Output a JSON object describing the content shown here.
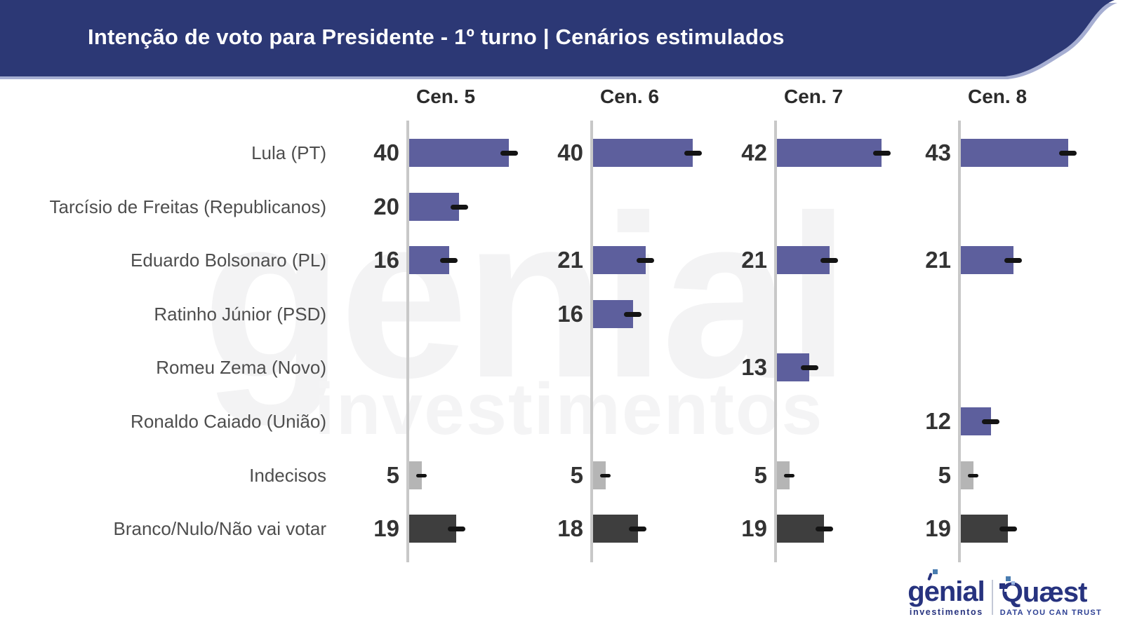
{
  "header": {
    "title": "Intenção de voto para Presidente - 1º turno | Cenários estimulados",
    "background_color": "#2c3875",
    "edge_color": "#a6aed2",
    "text_color": "#ffffff"
  },
  "watermark": {
    "line1": "genial",
    "line2": "investimentos"
  },
  "chart_data": {
    "type": "bar",
    "orientation": "horizontal",
    "unit": "percent",
    "scenarios": [
      "Cen. 5",
      "Cen. 6",
      "Cen. 7",
      "Cen. 8"
    ],
    "categories": [
      "Lula (PT)",
      "Tarcísio de Freitas (Republicanos)",
      "Eduardo Bolsonaro (PL)",
      "Ratinho Júnior (PSD)",
      "Romeu Zema (Novo)",
      "Ronaldo Caiado (União)",
      "Indecisos",
      "Branco/Nulo/Não vai votar"
    ],
    "series": [
      {
        "name": "Cen. 5",
        "values": [
          40,
          20,
          16,
          null,
          null,
          null,
          5,
          19
        ]
      },
      {
        "name": "Cen. 6",
        "values": [
          40,
          null,
          21,
          16,
          null,
          null,
          5,
          18
        ]
      },
      {
        "name": "Cen. 7",
        "values": [
          42,
          null,
          21,
          null,
          13,
          null,
          5,
          19
        ]
      },
      {
        "name": "Cen. 8",
        "values": [
          43,
          null,
          21,
          null,
          null,
          12,
          5,
          19
        ]
      }
    ],
    "category_colors": [
      "#5d5f9d",
      "#5d5f9d",
      "#5d5f9d",
      "#5d5f9d",
      "#5d5f9d",
      "#5d5f9d",
      "#b5b5b5",
      "#3e3e3e"
    ],
    "value_label_color": "#333333",
    "axis_color": "#c8c8c8",
    "error_marker_color": "#141414",
    "grid": false,
    "legend": false,
    "value_labels_position": "left-of-axis"
  },
  "footer": {
    "genial": {
      "name": "genial",
      "sub": "investimentos",
      "color": "#27337f"
    },
    "quaest": {
      "name": "Quæst",
      "tagline": "DATA YOU CAN TRUST",
      "color": "#27337f"
    }
  }
}
